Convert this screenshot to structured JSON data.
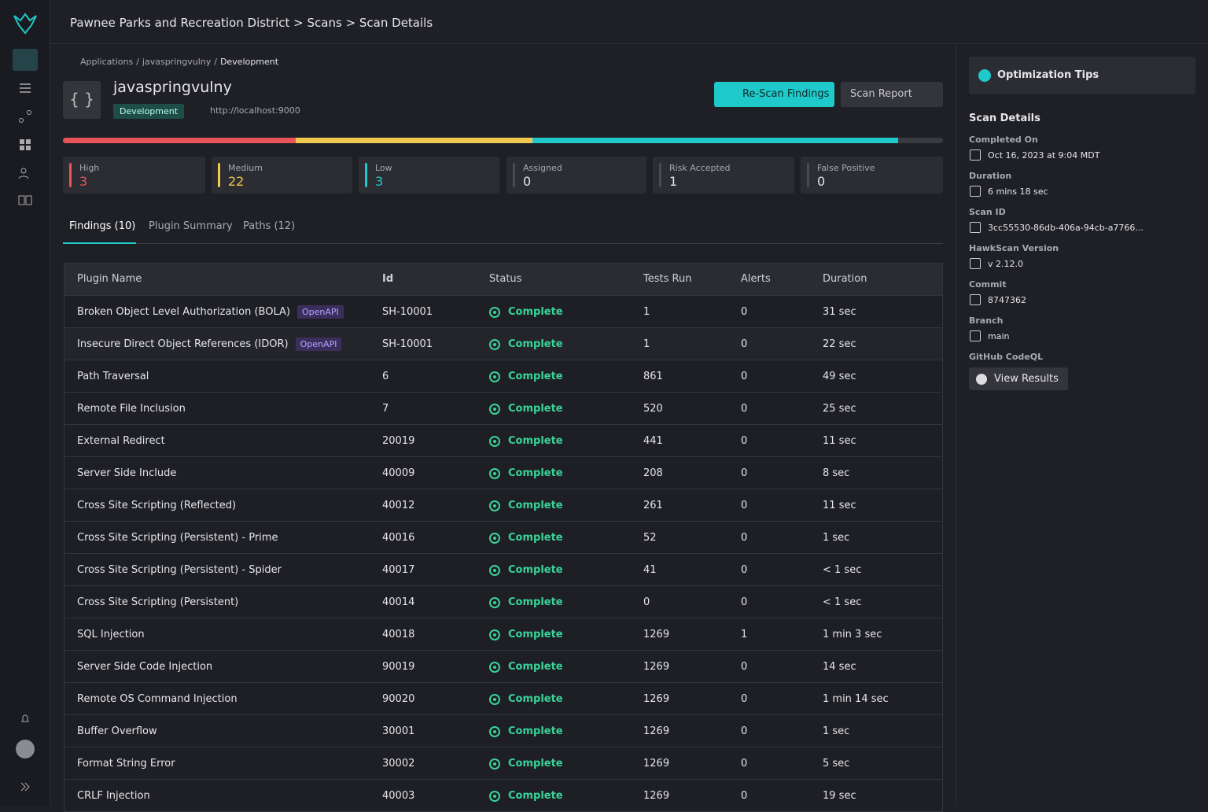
{
  "header": {
    "breadcrumb": "Pawnee Parks and Recreation District > Scans > Scan Details"
  },
  "app": {
    "path": [
      "Applications",
      "javaspringvulny",
      "Development"
    ],
    "separator": "/",
    "name": "javaspringvulny",
    "env": "Development",
    "url": "http://localhost:9000",
    "rescan": "Re-Scan Findings",
    "report": "Scan Report"
  },
  "counts": [
    {
      "label": "High",
      "value": 3,
      "color": "#e9545a"
    },
    {
      "label": "Medium",
      "value": 22,
      "color": "#f1c950"
    },
    {
      "label": "Low",
      "value": 3,
      "color": "#1fc9c9"
    },
    {
      "label": "Assigned",
      "value": 0,
      "color": "#4a4b52"
    },
    {
      "label": "Risk Accepted",
      "value": 1,
      "color": "#4a4b52"
    },
    {
      "label": "False Positive",
      "value": 0,
      "color": "#4a4b52"
    }
  ],
  "tabs": [
    "Findings (10)",
    "Plugin Summary",
    "Paths (12)"
  ],
  "table": {
    "columns": [
      "Plugin Name",
      "Id",
      "Status",
      "Tests Run",
      "Alerts",
      "Duration"
    ],
    "rows": [
      {
        "name": "Broken Object Level Authorization (BOLA)",
        "tag": "OpenAPI",
        "id": "SH-10001",
        "status": "Complete",
        "tests": 1,
        "alerts": 0,
        "duration": "31 sec"
      },
      {
        "name": "Insecure Direct Object References (IDOR)",
        "tag": "OpenAPI",
        "id": "SH-10001",
        "status": "Complete",
        "tests": 1,
        "alerts": 0,
        "duration": "22 sec"
      },
      {
        "name": "Path Traversal",
        "id": "6",
        "status": "Complete",
        "tests": 861,
        "alerts": 0,
        "duration": "49 sec"
      },
      {
        "name": "Remote File Inclusion",
        "id": "7",
        "status": "Complete",
        "tests": 520,
        "alerts": 0,
        "duration": "25 sec"
      },
      {
        "name": "External Redirect",
        "id": "20019",
        "status": "Complete",
        "tests": 441,
        "alerts": 0,
        "duration": "11 sec"
      },
      {
        "name": "Server Side Include",
        "id": "40009",
        "status": "Complete",
        "tests": 208,
        "alerts": 0,
        "duration": "8 sec"
      },
      {
        "name": "Cross Site Scripting (Reflected)",
        "id": "40012",
        "status": "Complete",
        "tests": 261,
        "alerts": 0,
        "duration": "11 sec"
      },
      {
        "name": "Cross Site Scripting (Persistent) - Prime",
        "id": "40016",
        "status": "Complete",
        "tests": 52,
        "alerts": 0,
        "duration": "1 sec"
      },
      {
        "name": "Cross Site Scripting (Persistent) - Spider",
        "id": "40017",
        "status": "Complete",
        "tests": 41,
        "alerts": 0,
        "duration": "< 1 sec"
      },
      {
        "name": "Cross Site Scripting (Persistent)",
        "id": "40014",
        "status": "Complete",
        "tests": 0,
        "alerts": 0,
        "duration": "< 1 sec"
      },
      {
        "name": "SQL Injection",
        "id": "40018",
        "status": "Complete",
        "tests": 1269,
        "alerts": 1,
        "duration": "1 min 3 sec"
      },
      {
        "name": "Server Side Code Injection",
        "id": "90019",
        "status": "Complete",
        "tests": 1269,
        "alerts": 0,
        "duration": "14 sec"
      },
      {
        "name": "Remote OS Command Injection",
        "id": "90020",
        "status": "Complete",
        "tests": 1269,
        "alerts": 0,
        "duration": "1 min 14 sec"
      },
      {
        "name": "Buffer Overflow",
        "id": "30001",
        "status": "Complete",
        "tests": 1269,
        "alerts": 0,
        "duration": "1 sec"
      },
      {
        "name": "Format String Error",
        "id": "30002",
        "status": "Complete",
        "tests": 1269,
        "alerts": 0,
        "duration": "5 sec"
      },
      {
        "name": "CRLF Injection",
        "id": "40003",
        "status": "Complete",
        "tests": 1269,
        "alerts": 0,
        "duration": "19 sec"
      }
    ]
  },
  "panel": {
    "tips": "Optimization Tips",
    "title": "Scan Details",
    "fields": [
      {
        "label": "Completed On",
        "value": "Oct 16, 2023 at 9:04 MDT"
      },
      {
        "label": "Duration",
        "value": "6 mins 18 sec"
      },
      {
        "label": "Scan ID",
        "value": "3cc55530-86db-406a-94cb-a7766..."
      },
      {
        "label": "HawkScan Version",
        "value": "v 2.12.0"
      },
      {
        "label": "Commit",
        "value": "8747362"
      },
      {
        "label": "Branch",
        "value": "main"
      }
    ],
    "codeql": "GitHub CodeQL",
    "results": "View Results"
  }
}
